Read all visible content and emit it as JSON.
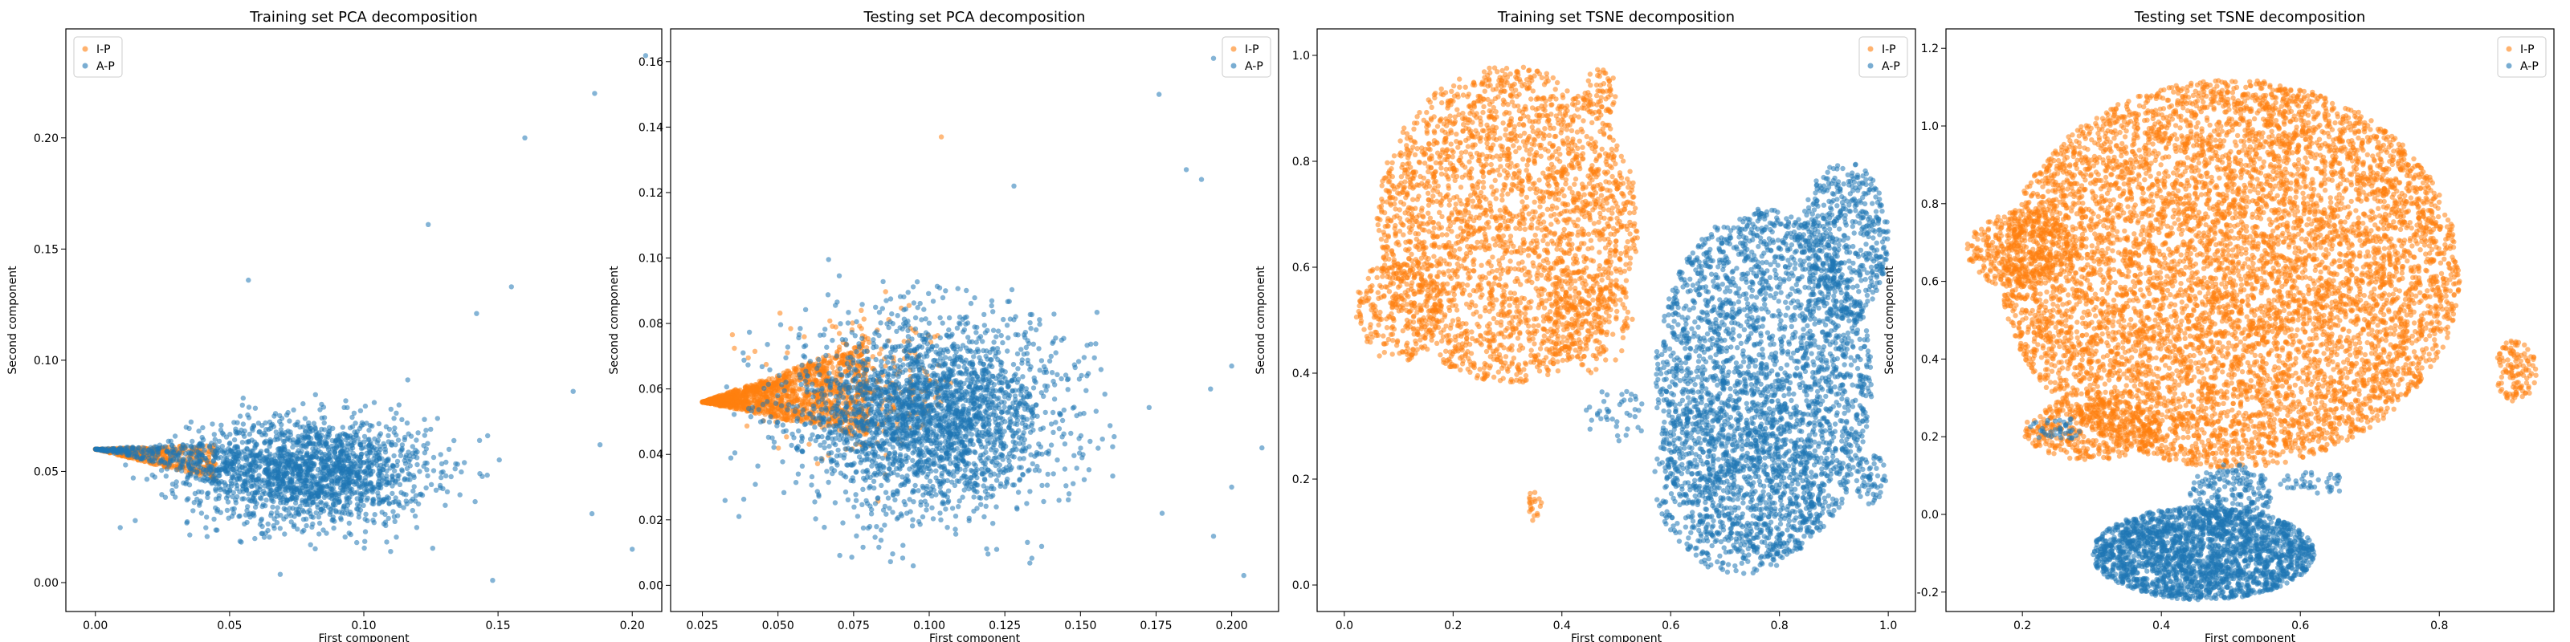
{
  "colors": {
    "I-P": "#ff7f0e",
    "A-P": "#1f77b4"
  },
  "chart_data": [
    {
      "type": "scatter",
      "title": "Training set PCA decomposition",
      "xlabel": "First component",
      "ylabel": "Second component",
      "xlim": [
        -0.011,
        0.211
      ],
      "ylim": [
        -0.013,
        0.249
      ],
      "xticks": [
        "0.00",
        "0.05",
        "0.10",
        "0.15",
        "0.20"
      ],
      "yticks": [
        "0.00",
        "0.05",
        "0.10",
        "0.15",
        "0.20"
      ],
      "legend": {
        "position": "top-left",
        "entries": [
          "I-P",
          "A-P"
        ]
      },
      "series": [
        {
          "name": "I-P",
          "color": "#ff7f0e",
          "clusters": [
            {
              "shape": "wedge",
              "apex": [
                0.0,
                0.06
              ],
              "ex": 0.045,
              "upper": 0.062,
              "lower": 0.046,
              "n": 500
            }
          ]
        },
        {
          "name": "A-P",
          "color": "#1f77b4",
          "clusters": [
            {
              "shape": "gauss",
              "center": [
                0.08,
                0.05
              ],
              "sx": 0.022,
              "sy": 0.012,
              "n": 1800,
              "xmin": 0.0
            },
            {
              "shape": "wedge",
              "apex": [
                0.0,
                0.06
              ],
              "ex": 0.06,
              "upper": 0.064,
              "lower": 0.044,
              "n": 300
            }
          ],
          "points": [
            [
              0.205,
              0.237
            ],
            [
              0.186,
              0.22
            ],
            [
              0.16,
              0.2
            ],
            [
              0.124,
              0.161
            ],
            [
              0.057,
              0.136
            ],
            [
              0.155,
              0.133
            ],
            [
              0.142,
              0.121
            ],
            [
              0.178,
              0.086
            ],
            [
              0.188,
              0.062
            ],
            [
              0.2,
              0.015
            ],
            [
              0.148,
              0.001
            ],
            [
              0.185,
              0.031
            ]
          ]
        }
      ]
    },
    {
      "type": "scatter",
      "title": "Testing set PCA decomposition",
      "xlabel": "First component",
      "ylabel": "Second component",
      "xlim": [
        0.0145,
        0.2155
      ],
      "ylim": [
        -0.008,
        0.17
      ],
      "xticks": [
        "0.025",
        "0.050",
        "0.075",
        "0.100",
        "0.125",
        "0.150",
        "0.175",
        "0.200"
      ],
      "yticks": [
        "0.00",
        "0.02",
        "0.04",
        "0.06",
        "0.08",
        "0.10",
        "0.12",
        "0.14",
        "0.16"
      ],
      "legend": {
        "position": "top-right",
        "entries": [
          "I-P",
          "A-P"
        ]
      },
      "series": [
        {
          "name": "I-P",
          "color": "#ff7f0e",
          "clusters": [
            {
              "shape": "wedge",
              "apex": [
                0.025,
                0.056
              ],
              "ex": 0.055,
              "upper": 0.075,
              "lower": 0.045,
              "n": 1400
            },
            {
              "shape": "gauss",
              "center": [
                0.08,
                0.06
              ],
              "sx": 0.015,
              "sy": 0.01,
              "n": 250
            }
          ],
          "points": [
            [
              0.104,
              0.137
            ]
          ]
        },
        {
          "name": "A-P",
          "color": "#1f77b4",
          "clusters": [
            {
              "shape": "gauss",
              "center": [
                0.1,
                0.052
              ],
              "sx": 0.022,
              "sy": 0.014,
              "n": 2600,
              "xmin": 0.03
            }
          ],
          "points": [
            [
              0.176,
              0.15
            ],
            [
              0.194,
              0.161
            ],
            [
              0.185,
              0.127
            ],
            [
              0.19,
              0.124
            ],
            [
              0.128,
              0.122
            ],
            [
              0.2,
              0.067
            ],
            [
              0.21,
              0.042
            ],
            [
              0.194,
              0.015
            ],
            [
              0.204,
              0.003
            ],
            [
              0.2,
              0.03
            ],
            [
              0.177,
              0.022
            ],
            [
              0.193,
              0.06
            ]
          ]
        }
      ]
    },
    {
      "type": "scatter",
      "title": "Training set TSNE decomposition",
      "xlabel": "First component",
      "ylabel": "Second component",
      "xlim": [
        -0.05,
        1.05
      ],
      "ylim": [
        -0.05,
        1.05
      ],
      "xticks": [
        "0.0",
        "0.2",
        "0.4",
        "0.6",
        "0.8",
        "1.0"
      ],
      "yticks": [
        "0.0",
        "0.2",
        "0.4",
        "0.6",
        "0.8",
        "1.0"
      ],
      "legend": {
        "position": "top-right",
        "entries": [
          "I-P",
          "A-P"
        ]
      },
      "series": [
        {
          "name": "I-P",
          "color": "#ff7f0e",
          "clusters": [
            {
              "shape": "ellipse",
              "center": [
                0.3,
                0.68
              ],
              "rx": 0.24,
              "ry": 0.3,
              "n": 2600
            },
            {
              "shape": "ellipse",
              "center": [
                0.1,
                0.52
              ],
              "rx": 0.08,
              "ry": 0.1,
              "n": 250
            },
            {
              "shape": "ellipse",
              "center": [
                0.45,
                0.5
              ],
              "rx": 0.08,
              "ry": 0.1,
              "n": 200
            },
            {
              "shape": "ellipse",
              "center": [
                0.47,
                0.93
              ],
              "rx": 0.03,
              "ry": 0.05,
              "n": 60
            },
            {
              "shape": "ellipse",
              "center": [
                0.35,
                0.15
              ],
              "rx": 0.015,
              "ry": 0.03,
              "n": 20
            }
          ]
        },
        {
          "name": "A-P",
          "color": "#1f77b4",
          "clusters": [
            {
              "shape": "ellipse",
              "center": [
                0.77,
                0.38
              ],
              "rx": 0.2,
              "ry": 0.33,
              "n": 2600
            },
            {
              "shape": "ellipse",
              "center": [
                0.92,
                0.65
              ],
              "rx": 0.08,
              "ry": 0.15,
              "n": 500
            },
            {
              "shape": "ellipse",
              "center": [
                0.73,
                0.2
              ],
              "rx": 0.16,
              "ry": 0.18,
              "n": 600
            },
            {
              "shape": "ellipse",
              "center": [
                0.97,
                0.2
              ],
              "rx": 0.03,
              "ry": 0.05,
              "n": 60
            },
            {
              "shape": "ellipse",
              "center": [
                0.5,
                0.32
              ],
              "rx": 0.06,
              "ry": 0.05,
              "n": 40
            }
          ]
        }
      ]
    },
    {
      "type": "scatter",
      "title": "Testing set TSNE decomposition",
      "xlabel": "First component",
      "ylabel": "Second component",
      "xlim": [
        0.09,
        0.965
      ],
      "ylim": [
        -0.25,
        1.25
      ],
      "xticks": [
        "0.2",
        "0.4",
        "0.6",
        "0.8"
      ],
      "yticks": [
        "-0.2",
        "0.0",
        "0.2",
        "0.4",
        "0.6",
        "0.8",
        "1.0",
        "1.2"
      ],
      "legend": {
        "position": "top-right",
        "entries": [
          "I-P",
          "A-P"
        ]
      },
      "series": [
        {
          "name": "I-P",
          "color": "#ff7f0e",
          "clusters": [
            {
              "shape": "ellipse",
              "center": [
                0.5,
                0.62
              ],
              "rx": 0.33,
              "ry": 0.5,
              "n": 7500
            },
            {
              "shape": "ellipse",
              "center": [
                0.2,
                0.68
              ],
              "rx": 0.08,
              "ry": 0.1,
              "n": 400
            },
            {
              "shape": "ellipse",
              "center": [
                0.91,
                0.37
              ],
              "rx": 0.03,
              "ry": 0.08,
              "n": 120
            },
            {
              "shape": "ellipse",
              "center": [
                0.3,
                0.22
              ],
              "rx": 0.1,
              "ry": 0.08,
              "n": 400
            }
          ]
        },
        {
          "name": "A-P",
          "color": "#1f77b4",
          "clusters": [
            {
              "shape": "ellipse",
              "center": [
                0.46,
                -0.1
              ],
              "rx": 0.16,
              "ry": 0.12,
              "n": 2200
            },
            {
              "shape": "ellipse",
              "center": [
                0.5,
                0.05
              ],
              "rx": 0.06,
              "ry": 0.08,
              "n": 200
            },
            {
              "shape": "ellipse",
              "center": [
                0.25,
                0.22
              ],
              "rx": 0.04,
              "ry": 0.03,
              "n": 40
            },
            {
              "shape": "ellipse",
              "center": [
                0.62,
                0.08
              ],
              "rx": 0.05,
              "ry": 0.03,
              "n": 40
            }
          ]
        }
      ]
    }
  ]
}
